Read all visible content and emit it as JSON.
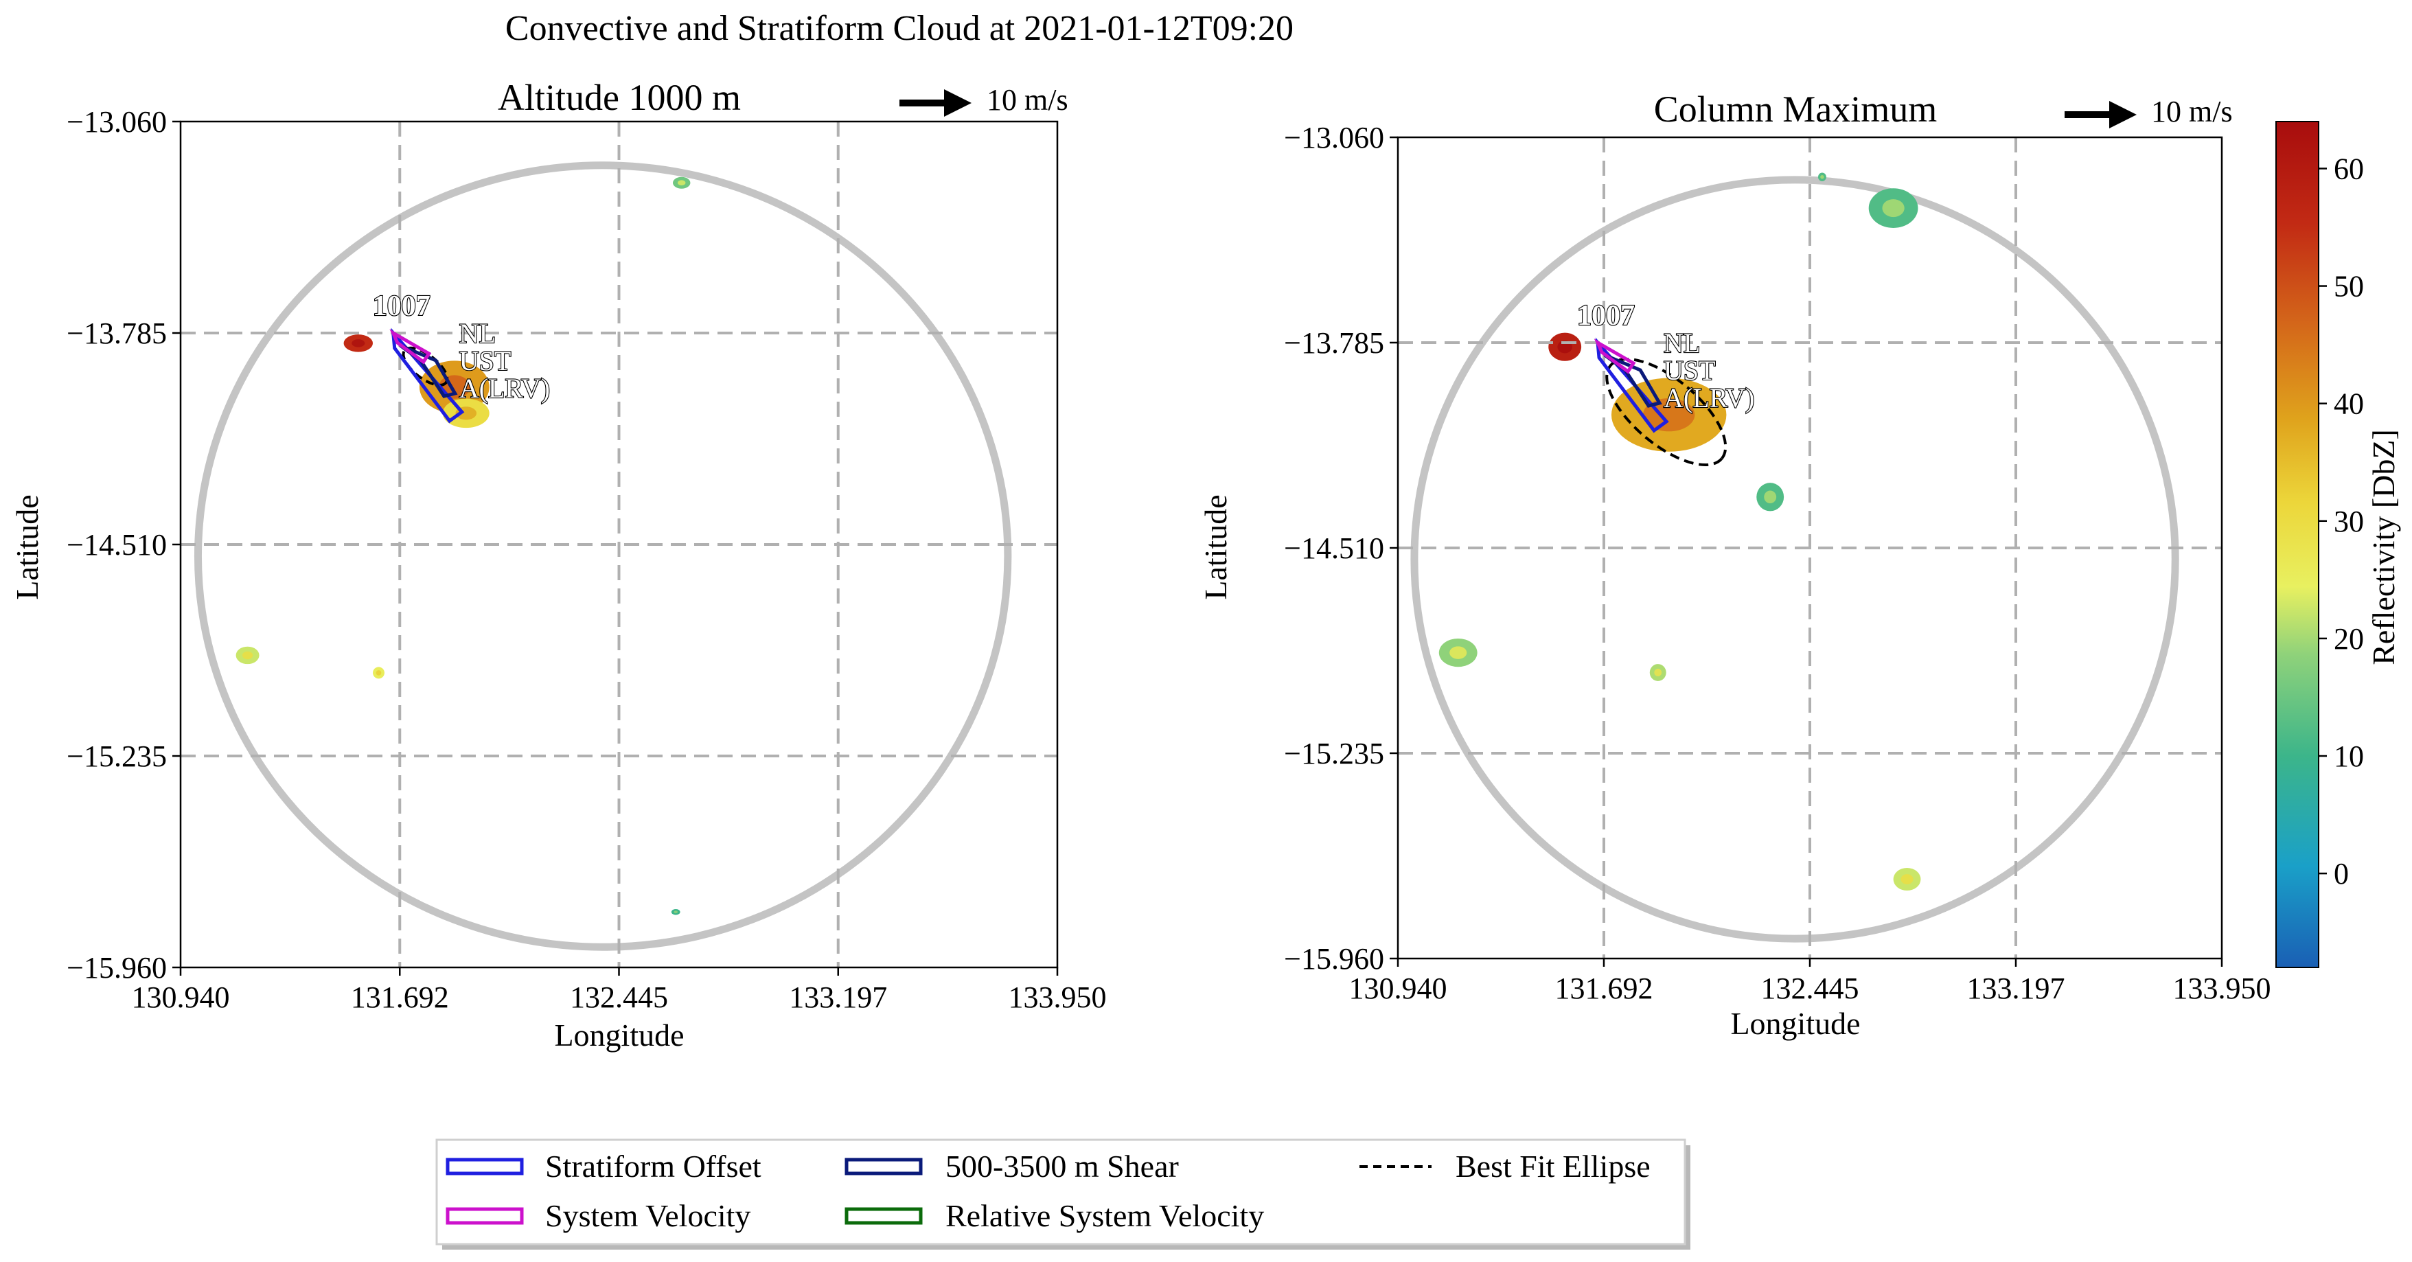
{
  "suptitle": "Convective and Stratiform Cloud at 2021-01-12T09:20",
  "chart_data": [
    {
      "type": "heatmap",
      "title": "Altitude 1000 m",
      "xlabel": "Longitude",
      "ylabel": "Latitude",
      "xlim": [
        130.94,
        133.95
      ],
      "ylim": [
        -15.96,
        -13.06
      ],
      "xticks": [
        "130.940",
        "131.692",
        "132.445",
        "133.197",
        "133.950"
      ],
      "yticks": [
        "−13.060",
        "−13.785",
        "−14.510",
        "−15.235",
        "−15.960"
      ],
      "grid": true,
      "scale_arrow_label": "10 m/s",
      "cell_id": "1007",
      "cell_labels": [
        "NL",
        "UST",
        "A(LRV)"
      ],
      "radar_ring": {
        "lon": 132.39,
        "lat": -14.55,
        "r_lon": 1.39,
        "r_lat": 1.34
      },
      "blobs": [
        {
          "lon": 131.88,
          "lat": -13.97,
          "r_lon": 0.12,
          "r_lat": 0.09,
          "dbz": 40
        },
        {
          "lon": 131.92,
          "lat": -14.06,
          "r_lon": 0.08,
          "r_lat": 0.05,
          "dbz": 30
        },
        {
          "lon": 131.55,
          "lat": -13.82,
          "r_lon": 0.05,
          "r_lat": 0.03,
          "dbz": 55
        },
        {
          "lon": 132.66,
          "lat": -13.27,
          "r_lon": 0.03,
          "r_lat": 0.02,
          "dbz": 15
        },
        {
          "lon": 131.17,
          "lat": -14.89,
          "r_lon": 0.04,
          "r_lat": 0.03,
          "dbz": 22
        },
        {
          "lon": 131.62,
          "lat": -14.95,
          "r_lon": 0.02,
          "r_lat": 0.02,
          "dbz": 25
        },
        {
          "lon": 132.64,
          "lat": -15.77,
          "r_lon": 0.015,
          "r_lat": 0.01,
          "dbz": 10
        }
      ]
    },
    {
      "type": "heatmap",
      "title": "Column Maximum",
      "xlabel": "Longitude",
      "ylabel": "Latitude",
      "xlim": [
        130.94,
        133.95
      ],
      "ylim": [
        -15.96,
        -13.06
      ],
      "xticks": [
        "130.940",
        "131.692",
        "132.445",
        "133.197",
        "133.950"
      ],
      "yticks": [
        "−13.060",
        "−13.785",
        "−14.510",
        "−15.235",
        "−15.960"
      ],
      "grid": true,
      "scale_arrow_label": "10 m/s",
      "cell_id": "1007",
      "cell_labels": [
        "NL",
        "UST",
        "A(LRV)"
      ],
      "radar_ring": {
        "lon": 132.39,
        "lat": -14.55,
        "r_lon": 1.39,
        "r_lat": 1.34
      },
      "blobs": [
        {
          "lon": 131.93,
          "lat": -14.04,
          "r_lon": 0.21,
          "r_lat": 0.13,
          "dbz": 38
        },
        {
          "lon": 131.55,
          "lat": -13.8,
          "r_lon": 0.06,
          "r_lat": 0.05,
          "dbz": 58
        },
        {
          "lon": 132.3,
          "lat": -14.33,
          "r_lon": 0.05,
          "r_lat": 0.05,
          "dbz": 12
        },
        {
          "lon": 132.75,
          "lat": -13.31,
          "r_lon": 0.09,
          "r_lat": 0.07,
          "dbz": 12
        },
        {
          "lon": 132.8,
          "lat": -15.68,
          "r_lon": 0.05,
          "r_lat": 0.04,
          "dbz": 22
        },
        {
          "lon": 131.16,
          "lat": -14.88,
          "r_lon": 0.07,
          "r_lat": 0.05,
          "dbz": 18
        },
        {
          "lon": 131.89,
          "lat": -14.95,
          "r_lon": 0.03,
          "r_lat": 0.03,
          "dbz": 20
        },
        {
          "lon": 132.49,
          "lat": -13.2,
          "r_lon": 0.015,
          "r_lat": 0.015,
          "dbz": 12
        }
      ]
    }
  ],
  "colorbar": {
    "label": "Reflectivity [DbZ]",
    "min": -8,
    "max": 64,
    "ticks": [
      "0",
      "10",
      "20",
      "30",
      "40",
      "50",
      "60"
    ],
    "tick_values": [
      0,
      10,
      20,
      30,
      40,
      50,
      60
    ],
    "colormap": "HomeyerRainbow"
  },
  "legend": {
    "items": [
      {
        "label": "Stratiform Offset",
        "color": "#1f1fe0",
        "style": "arrow"
      },
      {
        "label": "System Velocity",
        "color": "#cc11cc",
        "style": "arrow"
      },
      {
        "label": "500-3500 m Shear",
        "color": "#0a1a7a",
        "style": "arrow"
      },
      {
        "label": "Relative System Velocity",
        "color": "#0b6b0b",
        "style": "arrow"
      },
      {
        "label": "Best Fit Ellipse",
        "color": "#000000",
        "style": "dashed"
      }
    ]
  }
}
